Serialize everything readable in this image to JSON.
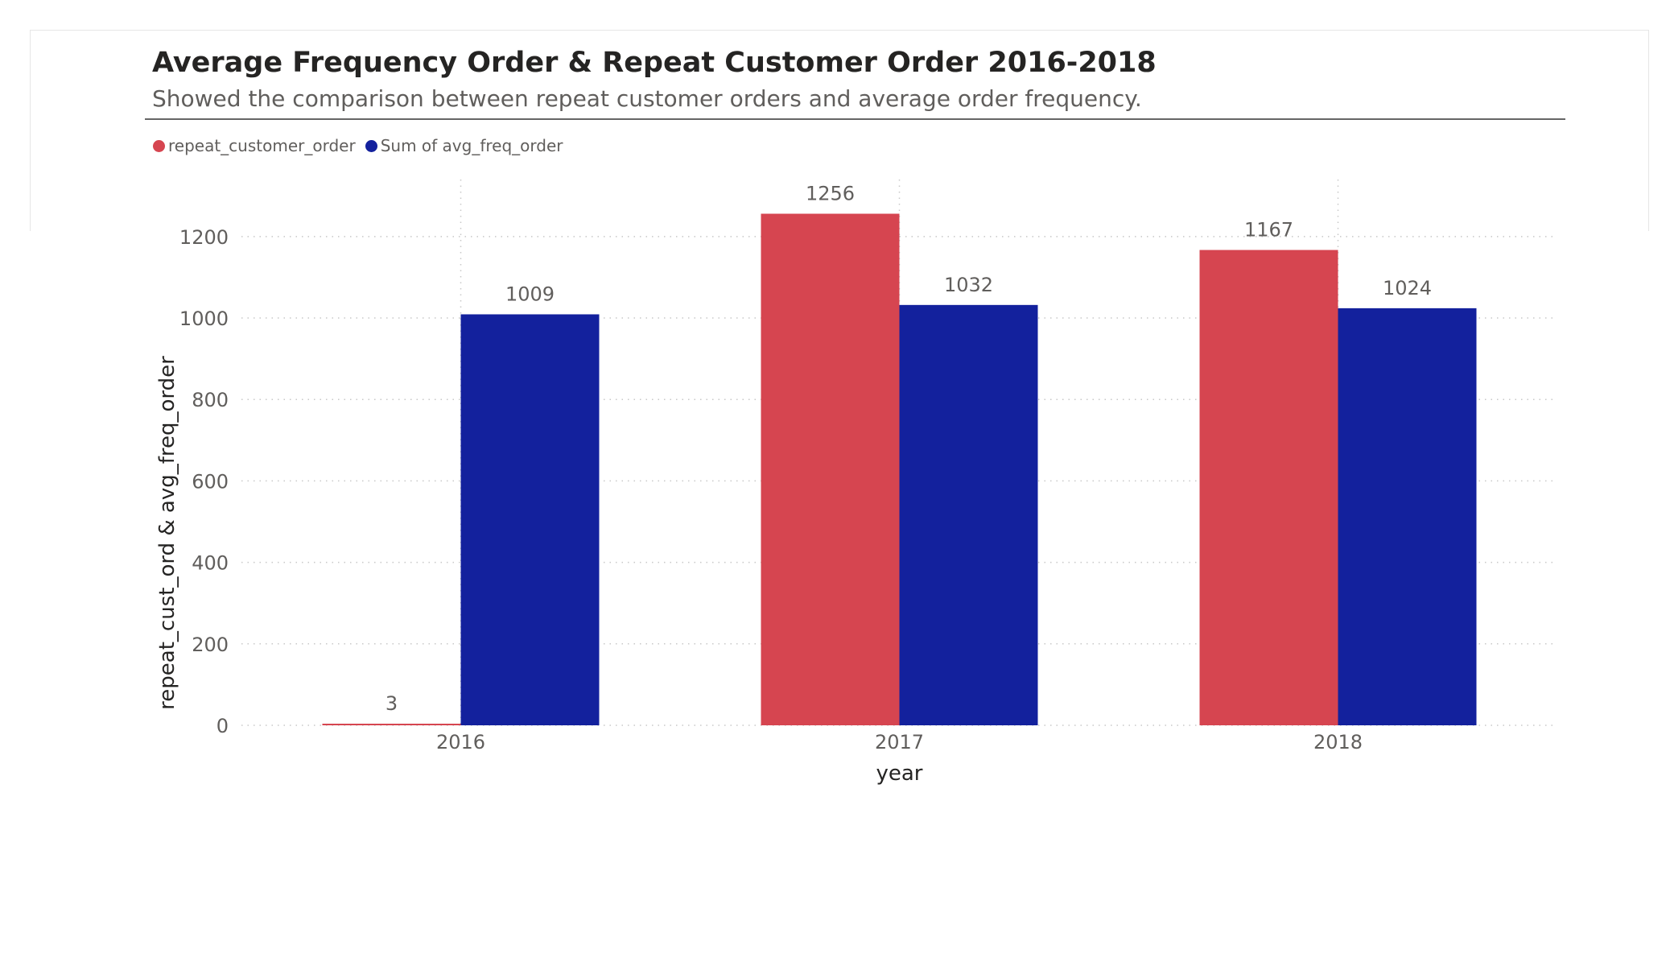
{
  "colors": {
    "series_red": "#d64550",
    "series_blue": "#13219d",
    "grid": "#c8c8c8",
    "tick_text": "#605e5c",
    "axis_title": "#252423",
    "label_text": "#605e5c"
  },
  "chart_data": {
    "type": "bar",
    "title": "Average Frequency Order & Repeat Customer Order 2016-2018",
    "subtitle": "Showed the comparison between repeat customer orders and average order frequency.",
    "xlabel": "year",
    "ylabel": "repeat_cust_ord & avg_freq_order",
    "categories": [
      "2016",
      "2017",
      "2018"
    ],
    "series": [
      {
        "name": "repeat_customer_order",
        "values": [
          3,
          1256,
          1167
        ],
        "color": "#d64550"
      },
      {
        "name": "Sum of avg_freq_order",
        "values": [
          1009,
          1032,
          1024
        ],
        "color": "#13219d"
      }
    ],
    "ylim": [
      0,
      1340
    ],
    "yticks": [
      0,
      200,
      400,
      600,
      800,
      1000,
      1200
    ],
    "grid": true,
    "legend": "top-left"
  }
}
